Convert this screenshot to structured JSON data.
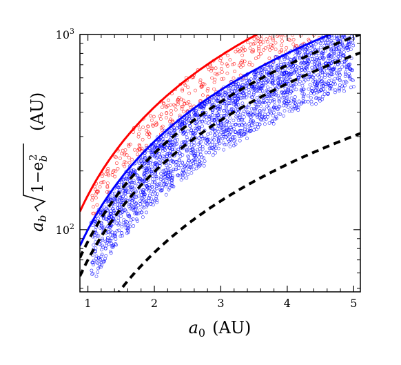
{
  "chart_data": {
    "type": "scatter",
    "xlabel": {
      "var": "a",
      "sub": "0",
      "unit": "(AU)"
    },
    "ylabel": {
      "var": "a",
      "sub": "b",
      "inside": "1−e",
      "inside_sub": "b",
      "inside_sup": "2",
      "unit": "(AU)"
    },
    "x_ticks": [
      1,
      2,
      3,
      4,
      5
    ],
    "x_tick_labels": [
      "1",
      "2",
      "3",
      "4",
      "5"
    ],
    "xlim": [
      0.88,
      5.1
    ],
    "y_scale": "log",
    "ylim": [
      48,
      1000
    ],
    "y_tick_labels": [
      {
        "value": 100,
        "base": "10",
        "exp": "2"
      },
      {
        "value": 1000,
        "base": "10",
        "exp": "3"
      }
    ],
    "grid": false,
    "colors": {
      "red": "#ff0000",
      "blue": "#0000ff",
      "black": "#000000"
    },
    "curves": [
      {
        "color": "red",
        "style": "solid",
        "k": 150,
        "p": 1.5
      },
      {
        "color": "blue",
        "style": "solid",
        "k": 100,
        "p": 1.5
      },
      {
        "color": "black",
        "style": "dashed",
        "k": 87,
        "p": 1.5
      },
      {
        "color": "black",
        "style": "dashed",
        "k": 70,
        "p": 1.5
      },
      {
        "color": "black",
        "style": "dashed",
        "k": 27,
        "p": 1.5
      }
    ],
    "scatter": [
      {
        "color": "red",
        "n": 420,
        "k_range": [
          100,
          150
        ]
      },
      {
        "color": "blue",
        "n": 2300,
        "k_range": [
          48,
          100
        ]
      }
    ]
  }
}
